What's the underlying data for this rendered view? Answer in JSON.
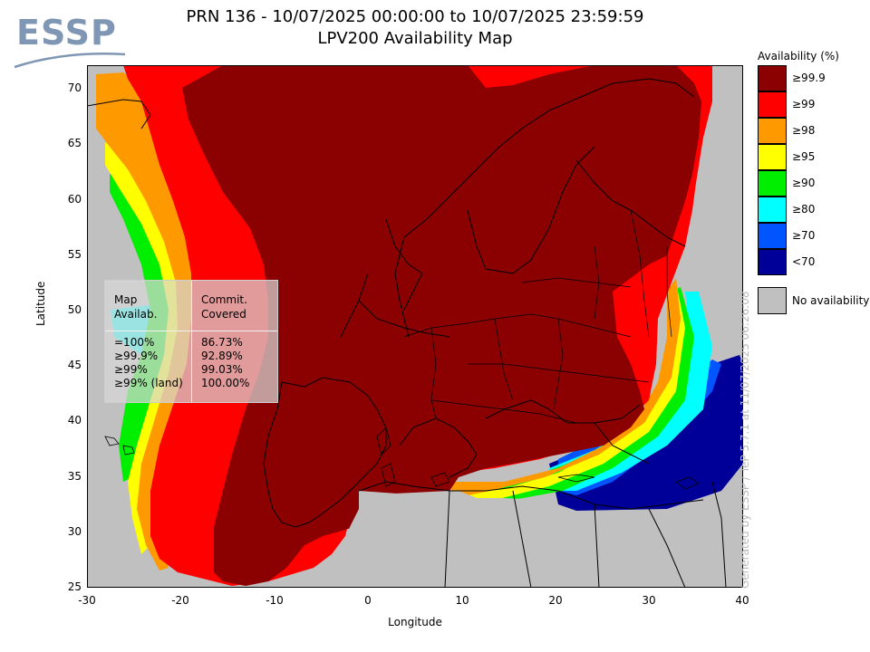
{
  "logo": {
    "text": "ESSP"
  },
  "title": {
    "line1": "PRN 136 - 10/07/2025 00:00:00 to 10/07/2025 23:59:59",
    "line2": "LPV200 Availability Map"
  },
  "axes": {
    "xlabel": "Longitude",
    "ylabel": "Latitude",
    "xticks": [
      "-30",
      "-20",
      "-10",
      "0",
      "10",
      "20",
      "30",
      "40"
    ],
    "yticks": [
      "70",
      "65",
      "60",
      "55",
      "50",
      "45",
      "40",
      "35",
      "30",
      "25"
    ],
    "xlim": [
      -30,
      40
    ],
    "ylim": [
      25,
      72
    ]
  },
  "legend": {
    "title": "Availability (%)",
    "items": [
      {
        "label": "≥99.9",
        "color": "#8b0000"
      },
      {
        "label": "≥99",
        "color": "#ff0000"
      },
      {
        "label": "≥98",
        "color": "#ff9900"
      },
      {
        "label": "≥95",
        "color": "#ffff00"
      },
      {
        "label": "≥90",
        "color": "#00ee00"
      },
      {
        "label": "≥80",
        "color": "#00ffff"
      },
      {
        "label": "≥70",
        "color": "#0055ff"
      },
      {
        "label": "<70",
        "color": "#000099"
      }
    ],
    "no_availability": {
      "label": "No availability",
      "color": "#c0c0c0"
    }
  },
  "stats_box": {
    "header_left": [
      "Map",
      "Availab."
    ],
    "header_right": [
      "Commit.",
      "Covered"
    ],
    "rows_left": [
      "=100%",
      "≥99.9%",
      "≥99%",
      "≥99% (land)"
    ],
    "rows_right": [
      "86.73%",
      "92.89%",
      "99.03%",
      "100.00%"
    ]
  },
  "generated_note": "Generated by ESSP / TeP 5.7.1 at 11/07/2025 06:26:08"
}
